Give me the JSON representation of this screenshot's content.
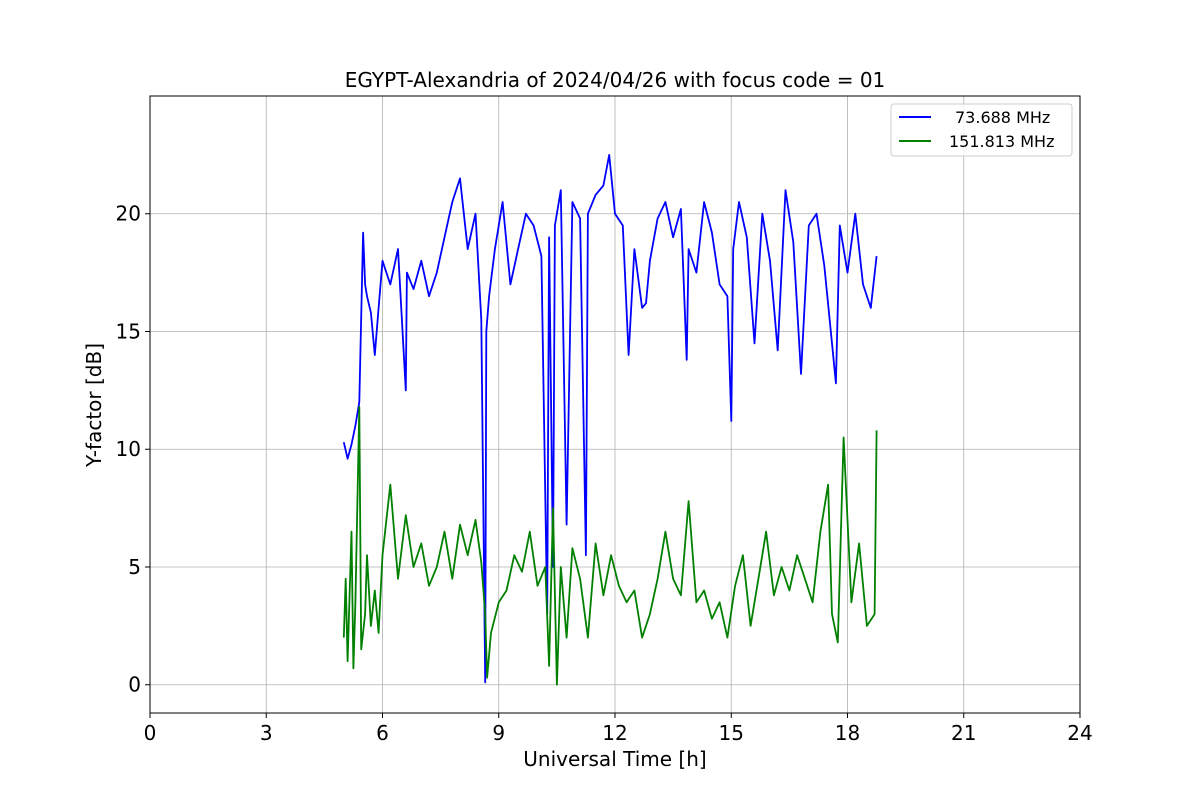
{
  "chart_data": {
    "type": "line",
    "title": "EGYPT-Alexandria of 2024/04/26 with focus code = 01",
    "xlabel": "Universal Time [h]",
    "ylabel": "Y-factor [dB]",
    "xlim": [
      0,
      24
    ],
    "ylim": [
      -1.2,
      25.0
    ],
    "xticks": [
      0,
      3,
      6,
      9,
      12,
      15,
      18,
      21,
      24
    ],
    "xtick_labels": [
      "0",
      "3",
      "6",
      "9",
      "12",
      "15",
      "18",
      "21",
      "24"
    ],
    "yticks": [
      0,
      5,
      10,
      15,
      20
    ],
    "ytick_labels": [
      "0",
      "5",
      "10",
      "15",
      "20"
    ],
    "grid": true,
    "legend_position": "top-right",
    "series": [
      {
        "name": "73.688 MHz",
        "color": "#0000ff",
        "x": [
          5.0,
          5.1,
          5.2,
          5.3,
          5.4,
          5.5,
          5.55,
          5.6,
          5.7,
          5.8,
          5.9,
          6.0,
          6.2,
          6.4,
          6.6,
          6.63,
          6.8,
          7.0,
          7.2,
          7.4,
          7.6,
          7.8,
          8.0,
          8.2,
          8.4,
          8.55,
          8.65,
          8.68,
          8.75,
          8.9,
          9.1,
          9.3,
          9.5,
          9.7,
          9.9,
          10.1,
          10.25,
          10.3,
          10.4,
          10.45,
          10.6,
          10.75,
          10.9,
          11.1,
          11.25,
          11.3,
          11.5,
          11.7,
          11.85,
          12.0,
          12.2,
          12.35,
          12.5,
          12.7,
          12.8,
          12.9,
          13.1,
          13.3,
          13.5,
          13.7,
          13.85,
          13.9,
          14.1,
          14.3,
          14.5,
          14.7,
          14.9,
          15.0,
          15.05,
          15.2,
          15.4,
          15.6,
          15.8,
          16.0,
          16.2,
          16.4,
          16.6,
          16.8,
          17.0,
          17.2,
          17.4,
          17.6,
          17.7,
          17.8,
          18.0,
          18.2,
          18.4,
          18.6,
          18.75
        ],
        "y": [
          10.3,
          9.6,
          10.2,
          11.0,
          12.0,
          19.2,
          17.0,
          16.5,
          15.8,
          14.0,
          16.0,
          18.0,
          17.0,
          18.5,
          12.5,
          17.5,
          16.8,
          18.0,
          16.5,
          17.5,
          19.0,
          20.5,
          21.5,
          18.5,
          20.0,
          15.5,
          0.1,
          15.0,
          16.5,
          18.5,
          20.5,
          17.0,
          18.5,
          20.0,
          19.5,
          18.2,
          3.0,
          19.0,
          5.0,
          19.5,
          21.0,
          6.8,
          20.5,
          19.8,
          5.5,
          20.0,
          20.8,
          21.2,
          22.5,
          20.0,
          19.5,
          14.0,
          18.5,
          16.0,
          16.2,
          18.0,
          19.8,
          20.5,
          19.0,
          20.2,
          13.8,
          18.5,
          17.5,
          20.5,
          19.2,
          17.0,
          16.5,
          11.2,
          18.5,
          20.5,
          19.0,
          14.5,
          20.0,
          18.0,
          14.2,
          21.0,
          18.8,
          13.2,
          19.5,
          20.0,
          17.8,
          14.5,
          12.8,
          19.5,
          17.5,
          20.0,
          17.0,
          16.0,
          18.2
        ]
      },
      {
        "name": "151.813 MHz",
        "color": "#008000",
        "x": [
          5.0,
          5.05,
          5.1,
          5.2,
          5.25,
          5.3,
          5.4,
          5.45,
          5.55,
          5.6,
          5.7,
          5.8,
          5.9,
          6.0,
          6.2,
          6.4,
          6.6,
          6.8,
          7.0,
          7.2,
          7.4,
          7.6,
          7.8,
          8.0,
          8.2,
          8.4,
          8.55,
          8.65,
          8.7,
          8.8,
          9.0,
          9.2,
          9.4,
          9.6,
          9.8,
          10.0,
          10.2,
          10.3,
          10.4,
          10.5,
          10.6,
          10.75,
          10.9,
          11.1,
          11.3,
          11.5,
          11.7,
          11.9,
          12.1,
          12.3,
          12.5,
          12.7,
          12.9,
          13.1,
          13.3,
          13.5,
          13.7,
          13.9,
          14.1,
          14.3,
          14.5,
          14.7,
          14.9,
          15.1,
          15.3,
          15.5,
          15.7,
          15.9,
          16.1,
          16.3,
          16.5,
          16.7,
          16.9,
          17.1,
          17.3,
          17.5,
          17.6,
          17.75,
          17.9,
          18.1,
          18.3,
          18.5,
          18.7,
          18.75
        ],
        "y": [
          2.0,
          4.5,
          1.0,
          6.5,
          0.7,
          3.5,
          11.8,
          1.5,
          3.0,
          5.5,
          2.5,
          4.0,
          2.2,
          5.5,
          8.5,
          4.5,
          7.2,
          5.0,
          6.0,
          4.2,
          5.0,
          6.5,
          4.5,
          6.8,
          5.5,
          7.0,
          5.2,
          3.0,
          0.3,
          2.2,
          3.5,
          4.0,
          5.5,
          4.8,
          6.5,
          4.2,
          5.0,
          0.8,
          7.5,
          0.0,
          5.0,
          2.0,
          5.8,
          4.5,
          2.0,
          6.0,
          3.8,
          5.5,
          4.2,
          3.5,
          4.0,
          2.0,
          3.0,
          4.5,
          6.5,
          4.5,
          3.8,
          7.8,
          3.5,
          4.0,
          2.8,
          3.5,
          2.0,
          4.2,
          5.5,
          2.5,
          4.5,
          6.5,
          3.8,
          5.0,
          4.0,
          5.5,
          4.5,
          3.5,
          6.5,
          8.5,
          3.0,
          1.8,
          10.5,
          3.5,
          6.0,
          2.5,
          3.0,
          10.8
        ]
      }
    ]
  }
}
